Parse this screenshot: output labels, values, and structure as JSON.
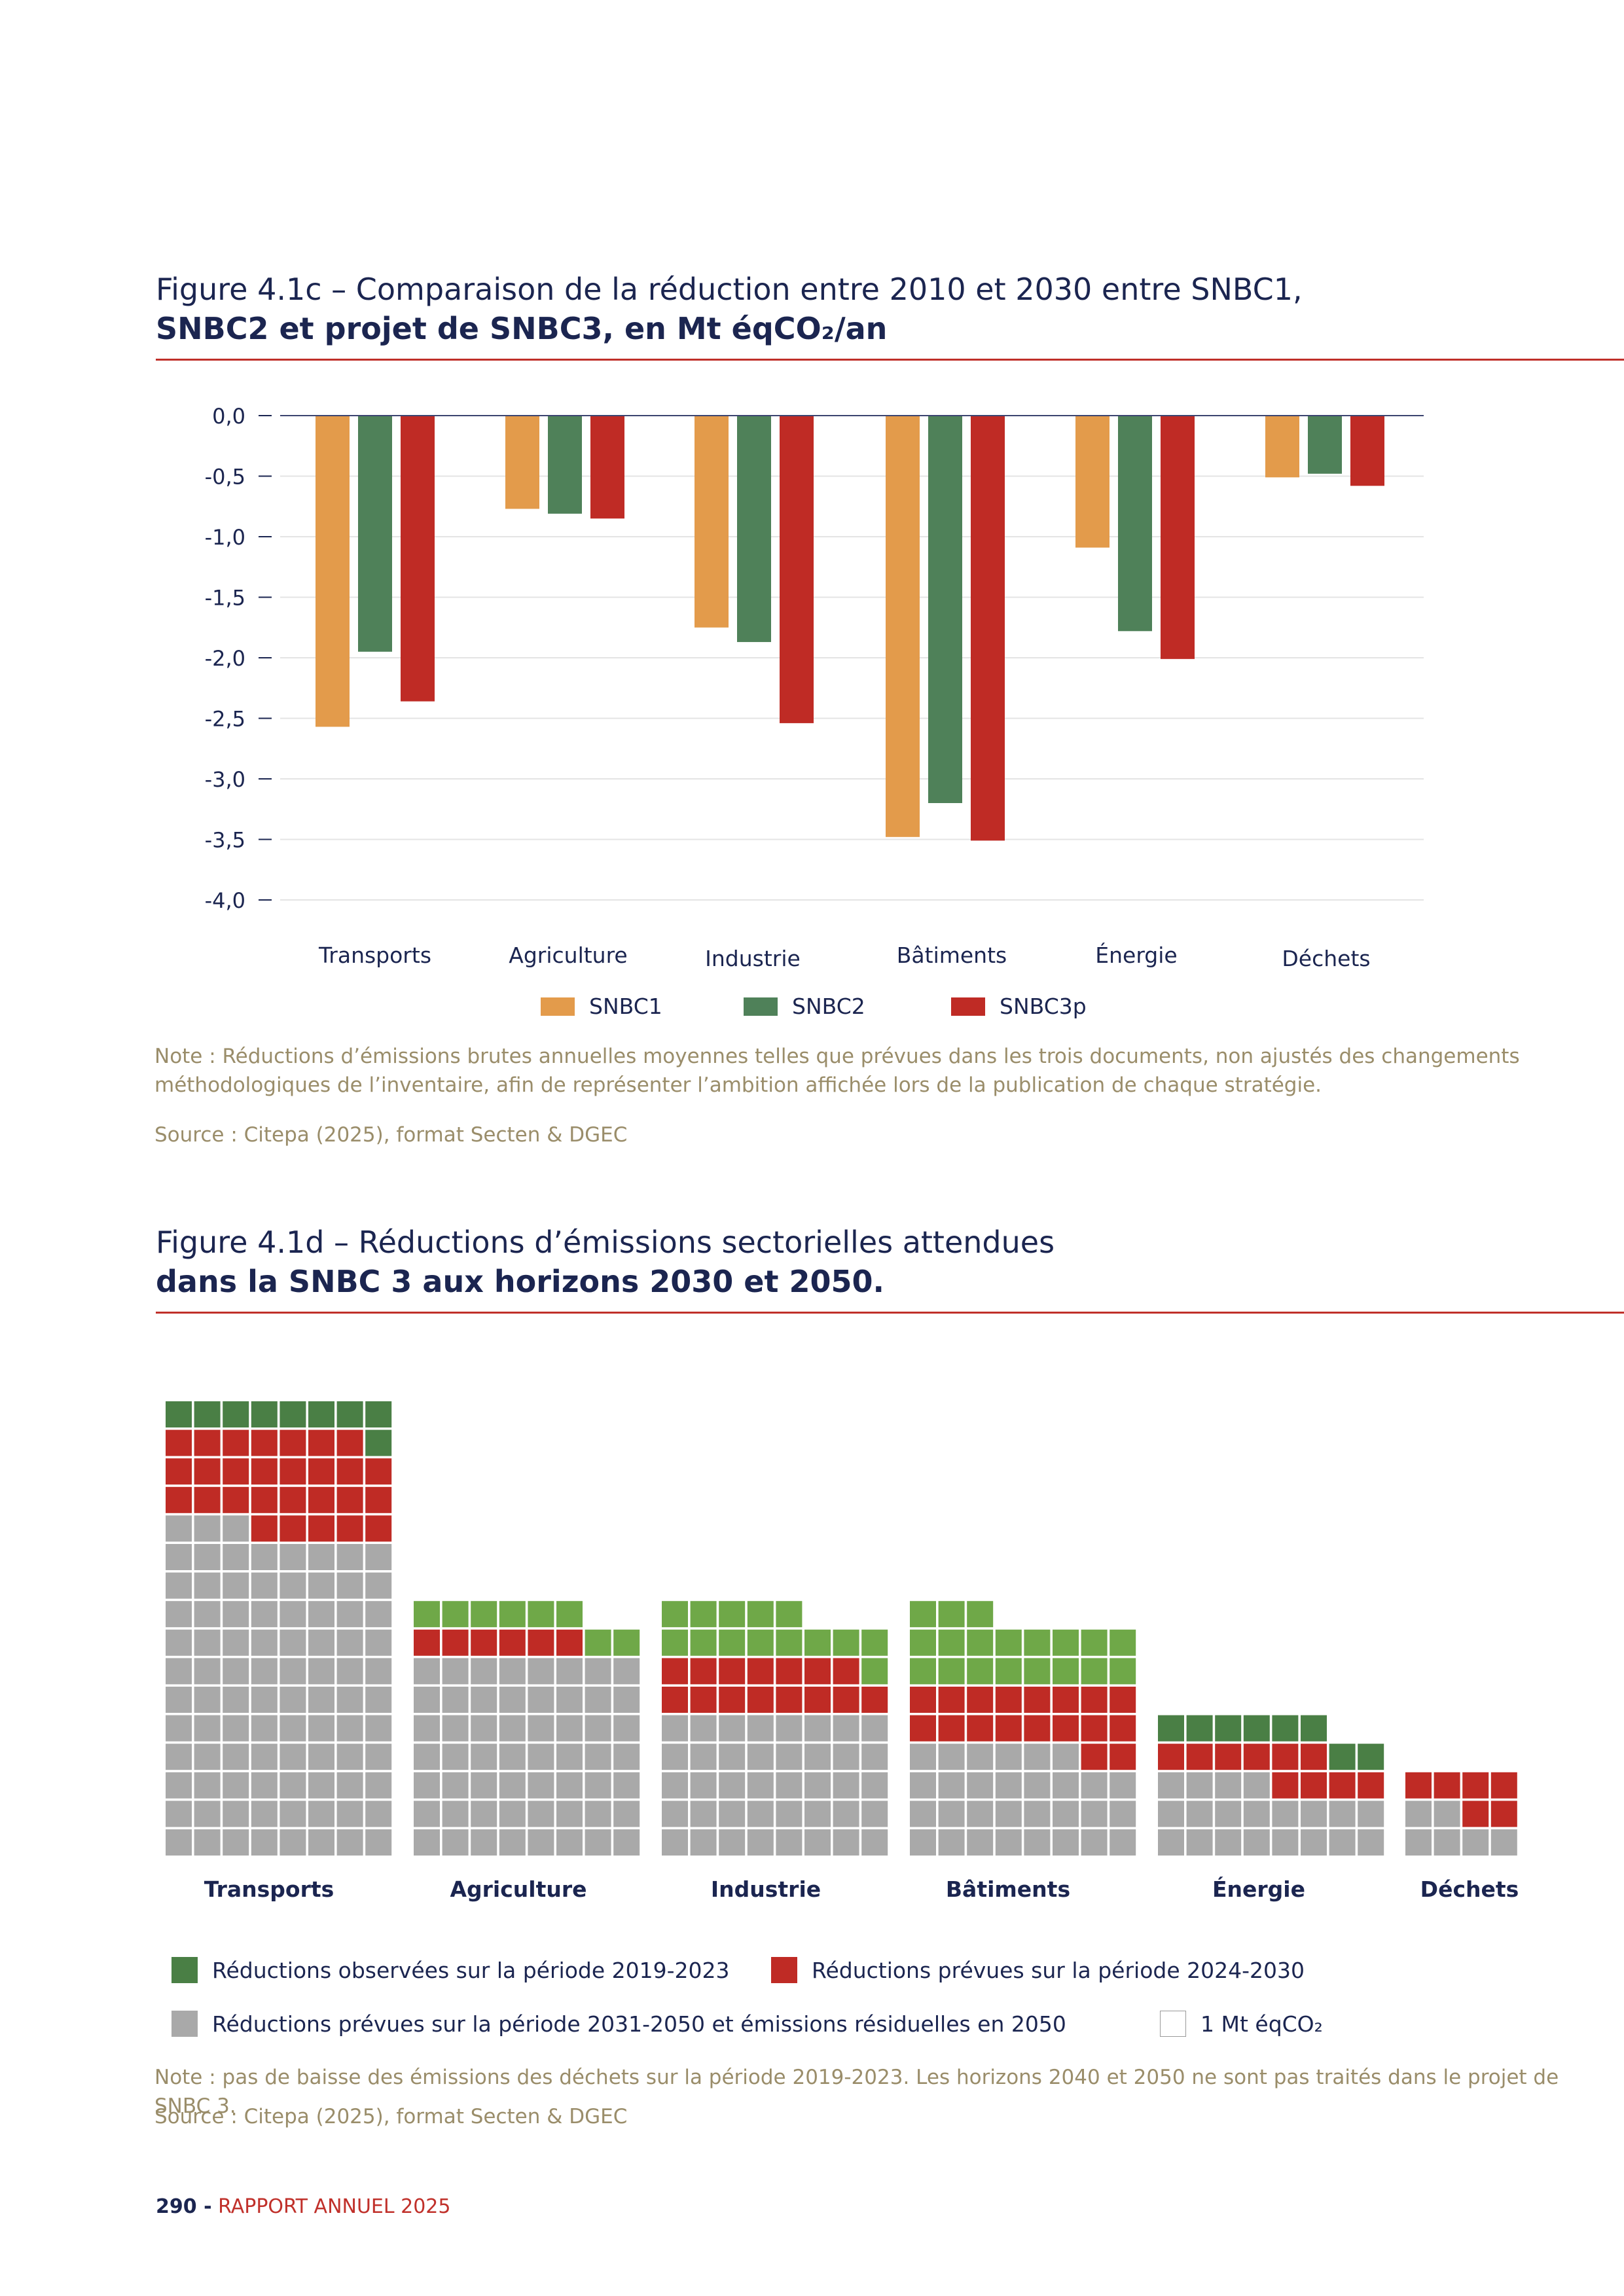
{
  "figure1": {
    "title_line1": "Figure 4.1c – Comparaison de la réduction entre 2010 et 2030 entre SNBC1,",
    "title_line2": "SNBC2 et projet de SNBC3, en Mt éqCO₂/an",
    "note": "Note : Réductions d’émissions brutes annuelles moyennes telles que prévues dans les trois documents, non ajustés des changements méthodologiques de l’inventaire, afin de représenter l’ambition affichée lors de la publication de chaque stratégie.",
    "source": "Source : Citepa (2025), format Secten & DGEC"
  },
  "chart_data": [
    {
      "type": "bar",
      "categories": [
        "Transports",
        "Agriculture",
        "Industrie",
        "Bâtiments",
        "Énergie",
        "Déchets"
      ],
      "series": [
        {
          "name": "SNBC1",
          "color": "#e39b4b",
          "values": [
            -2.57,
            -0.77,
            -1.75,
            -3.48,
            -1.09,
            -0.51
          ]
        },
        {
          "name": "SNBC2",
          "color": "#4f8159",
          "values": [
            -1.95,
            -0.81,
            -1.87,
            -3.2,
            -1.78,
            -0.48
          ]
        },
        {
          "name": "SNBC3p",
          "color": "#bf2b25",
          "values": [
            -2.36,
            -0.85,
            -2.54,
            -3.51,
            -2.01,
            -0.58
          ]
        }
      ],
      "yticks": [
        "0,0",
        "-0,5",
        "-1,0",
        "-1,5",
        "-2,0",
        "-2,5",
        "-3,0",
        "-3,5",
        "-4,0"
      ],
      "ylim": [
        -4,
        0
      ],
      "grid": true,
      "legend": "bottom"
    },
    {
      "type": "waffle",
      "unit": "1 Mt éqCO₂",
      "categories": [
        "Transports",
        "Agriculture",
        "Industrie",
        "Bâtiments",
        "Énergie",
        "Déchets"
      ],
      "series": [
        {
          "name": "Réductions observées sur la période 2019-2023",
          "color": "#4a7f45",
          "values": [
            9,
            0,
            0,
            0,
            8,
            0
          ]
        },
        {
          "name": "Réductions observées sur la période 2019-2023 (teinte claire)",
          "color": "#6fa848",
          "values": [
            0,
            8,
            14,
            19,
            0,
            0
          ]
        },
        {
          "name": "Réductions prévues sur la période 2024-2030",
          "color": "#bf2b25",
          "values": [
            28,
            6,
            15,
            18,
            10,
            6
          ]
        },
        {
          "name": "Réductions prévues sur la période 2031-2050 et émissions résiduelles en 2050",
          "color": "#a9a9a9",
          "values": [
            91,
            56,
            40,
            30,
            20,
            6
          ]
        }
      ],
      "columns": [
        8,
        8,
        8,
        8,
        8,
        4
      ]
    }
  ],
  "figure2": {
    "title_line1": "Figure 4.1d – Réductions d’émissions sectorielles attendues",
    "title_line2": "dans la SNBC 3 aux horizons 2030 et 2050.",
    "legend": {
      "observed": "Réductions observées sur la période 2019-2023",
      "planned_2030": "Réductions prévues sur la période 2024-2030",
      "planned_2050": "Réductions prévues sur la période 2031-2050 et émissions résiduelles en 2050",
      "unit": "1 Mt éqCO₂"
    },
    "note": "Note : pas de baisse des émissions des déchets sur la période 2019-2023. Les horizons 2040 et 2050 ne sont pas traités dans le projet de SNBC 3.",
    "source": "Source : Citepa (2025), format Secten & DGEC"
  },
  "footer": {
    "page_number": "290 -",
    "report_name": "RAPPORT ANNUEL 2025"
  },
  "colors": {
    "navy": "#1b2550",
    "accent_red": "#c0302a",
    "note_color": "#9a8d6a"
  }
}
